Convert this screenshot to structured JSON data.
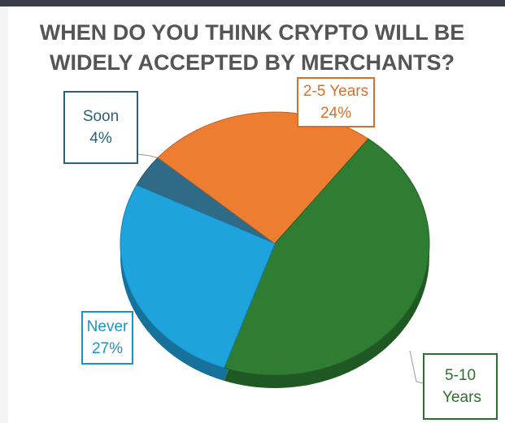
{
  "chart_data": {
    "type": "pie",
    "title": "WHEN DO YOU THINK CRYPTO WILL BE WIDELY ACCEPTED BY MERCHANTS?",
    "categories": [
      "Soon",
      "2-5 Years",
      "5-10 Years",
      "Never"
    ],
    "values": [
      4,
      24,
      45,
      27
    ],
    "value_labels": [
      "4%",
      "24%",
      null,
      "27%"
    ],
    "colors": [
      "#2f6a86",
      "#ed7d31",
      "#2e7d32",
      "#1fa3dc"
    ]
  }
}
